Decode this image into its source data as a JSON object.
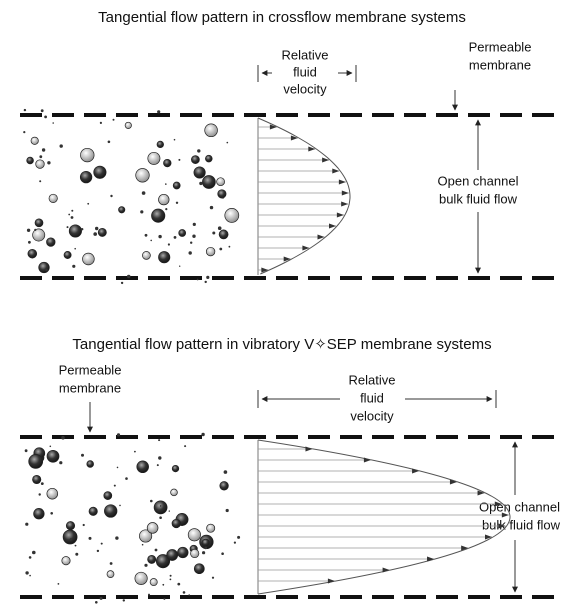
{
  "panels": [
    {
      "title": "Tangential flow pattern in crossflow membrane systems",
      "velocity_label": [
        "Relative",
        "fluid",
        "velocity"
      ],
      "membrane_label": [
        "Permeable",
        "membrane"
      ],
      "channel_label": [
        "Open channel",
        "bulk fluid flow"
      ]
    },
    {
      "title": "Tangential flow pattern in vibratory V✧SEP membrane systems",
      "velocity_label": [
        "Relative",
        "fluid",
        "velocity"
      ],
      "membrane_label": [
        "Permeable",
        "membrane"
      ],
      "channel_label": [
        "Open channel",
        "bulk fluid flow"
      ]
    }
  ]
}
